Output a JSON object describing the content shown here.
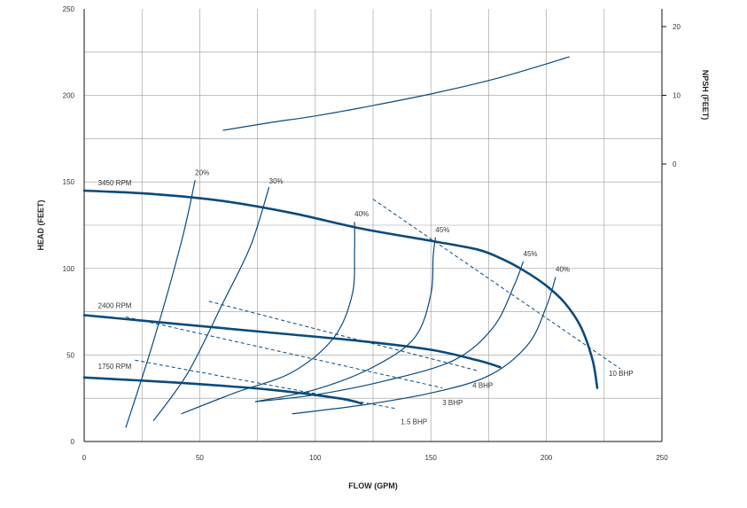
{
  "chart_data": {
    "type": "line",
    "title": "",
    "xlabel": "FLOW (GPM)",
    "ylabel": "HEAD (FEET)",
    "y2label": "NPSH (FEET)",
    "xlim": [
      0,
      250
    ],
    "ylim": [
      0,
      250
    ],
    "y2lim": [
      0,
      20
    ],
    "x_ticks": [
      0,
      50,
      100,
      150,
      200,
      250
    ],
    "y_ticks": [
      0,
      50,
      100,
      150,
      200,
      250
    ],
    "y2_ticks": [
      0,
      10,
      20
    ],
    "grid": true,
    "colors": {
      "curve": "#0b4a7a",
      "grid": "#9a9a9a",
      "axis": "#111111",
      "text": "#333333"
    },
    "speed_curves": [
      {
        "name": "3450 RPM",
        "points": [
          [
            0,
            145
          ],
          [
            30,
            143
          ],
          [
            60,
            139
          ],
          [
            90,
            132
          ],
          [
            120,
            123
          ],
          [
            150,
            116
          ],
          [
            170,
            111
          ],
          [
            180,
            106
          ],
          [
            190,
            99
          ],
          [
            200,
            90
          ],
          [
            208,
            80
          ],
          [
            215,
            66
          ],
          [
            220,
            47
          ],
          [
            222,
            31
          ]
        ]
      },
      {
        "name": "2400 RPM",
        "points": [
          [
            0,
            73
          ],
          [
            40,
            68
          ],
          [
            80,
            63
          ],
          [
            120,
            58
          ],
          [
            150,
            53
          ],
          [
            170,
            47
          ],
          [
            180,
            43
          ]
        ]
      },
      {
        "name": "1750 RPM",
        "points": [
          [
            0,
            37
          ],
          [
            40,
            34
          ],
          [
            80,
            30
          ],
          [
            110,
            25
          ],
          [
            120,
            22
          ]
        ]
      }
    ],
    "npsh_curve": {
      "points": [
        [
          60,
          4.9
        ],
        [
          80,
          6
        ],
        [
          100,
          7
        ],
        [
          120,
          8.2
        ],
        [
          150,
          10.2
        ],
        [
          180,
          12.6
        ],
        [
          210,
          15.6
        ]
      ]
    },
    "efficiency_curves": [
      {
        "label": "20%",
        "points": [
          [
            18,
            8
          ],
          [
            30,
            58
          ],
          [
            42,
            115
          ],
          [
            48,
            151
          ]
        ]
      },
      {
        "label": "30%",
        "points": [
          [
            30,
            12
          ],
          [
            45,
            40
          ],
          [
            60,
            80
          ],
          [
            72,
            113
          ],
          [
            80,
            147
          ]
        ]
      },
      {
        "label": "40%",
        "points": [
          [
            42,
            16
          ],
          [
            65,
            28
          ],
          [
            90,
            40
          ],
          [
            108,
            60
          ],
          [
            116,
            85
          ],
          [
            117,
            110
          ],
          [
            117,
            127
          ]
        ]
      },
      {
        "label": "45%",
        "points": [
          [
            74,
            23
          ],
          [
            100,
            30
          ],
          [
            125,
            43
          ],
          [
            143,
            60
          ],
          [
            150,
            85
          ],
          [
            151,
            107
          ],
          [
            152,
            118
          ]
        ]
      },
      {
        "label": "45%",
        "points": [
          [
            74,
            23
          ],
          [
            100,
            27
          ],
          [
            130,
            35
          ],
          [
            160,
            47
          ],
          [
            177,
            66
          ],
          [
            186,
            90
          ],
          [
            190,
            104
          ]
        ]
      },
      {
        "label": "40%",
        "points": [
          [
            90,
            16
          ],
          [
            120,
            21
          ],
          [
            150,
            28
          ],
          [
            175,
            38
          ],
          [
            192,
            56
          ],
          [
            200,
            78
          ],
          [
            204,
            95
          ]
        ]
      }
    ],
    "bhp_lines": [
      {
        "label": "10 BHP",
        "points": [
          [
            125,
            140
          ],
          [
            232,
            42
          ]
        ]
      },
      {
        "label": "4 BHP",
        "points": [
          [
            54,
            81
          ],
          [
            170,
            41
          ]
        ]
      },
      {
        "label": "3 BHP",
        "points": [
          [
            18,
            72
          ],
          [
            155,
            31
          ]
        ]
      },
      {
        "label": "1.5 BHP",
        "points": [
          [
            22,
            47
          ],
          [
            135,
            19
          ]
        ]
      }
    ],
    "annotations": [
      {
        "text": "3450 RPM",
        "x": 6,
        "y": 148
      },
      {
        "text": "2400 RPM",
        "x": 6,
        "y": 77
      },
      {
        "text": "1750 RPM",
        "x": 6,
        "y": 42
      },
      {
        "text": "20%",
        "x": 48,
        "y": 154
      },
      {
        "text": "30%",
        "x": 80,
        "y": 149
      },
      {
        "text": "40%",
        "x": 117,
        "y": 130
      },
      {
        "text": "45%",
        "x": 152,
        "y": 121
      },
      {
        "text": "45%",
        "x": 190,
        "y": 107
      },
      {
        "text": "40%",
        "x": 204,
        "y": 98
      },
      {
        "text": "10 BHP",
        "x": 227,
        "y": 38
      },
      {
        "text": "4 BHP",
        "x": 168,
        "y": 31
      },
      {
        "text": "3 BHP",
        "x": 155,
        "y": 21
      },
      {
        "text": "1.5 BHP",
        "x": 137,
        "y": 10
      }
    ]
  }
}
